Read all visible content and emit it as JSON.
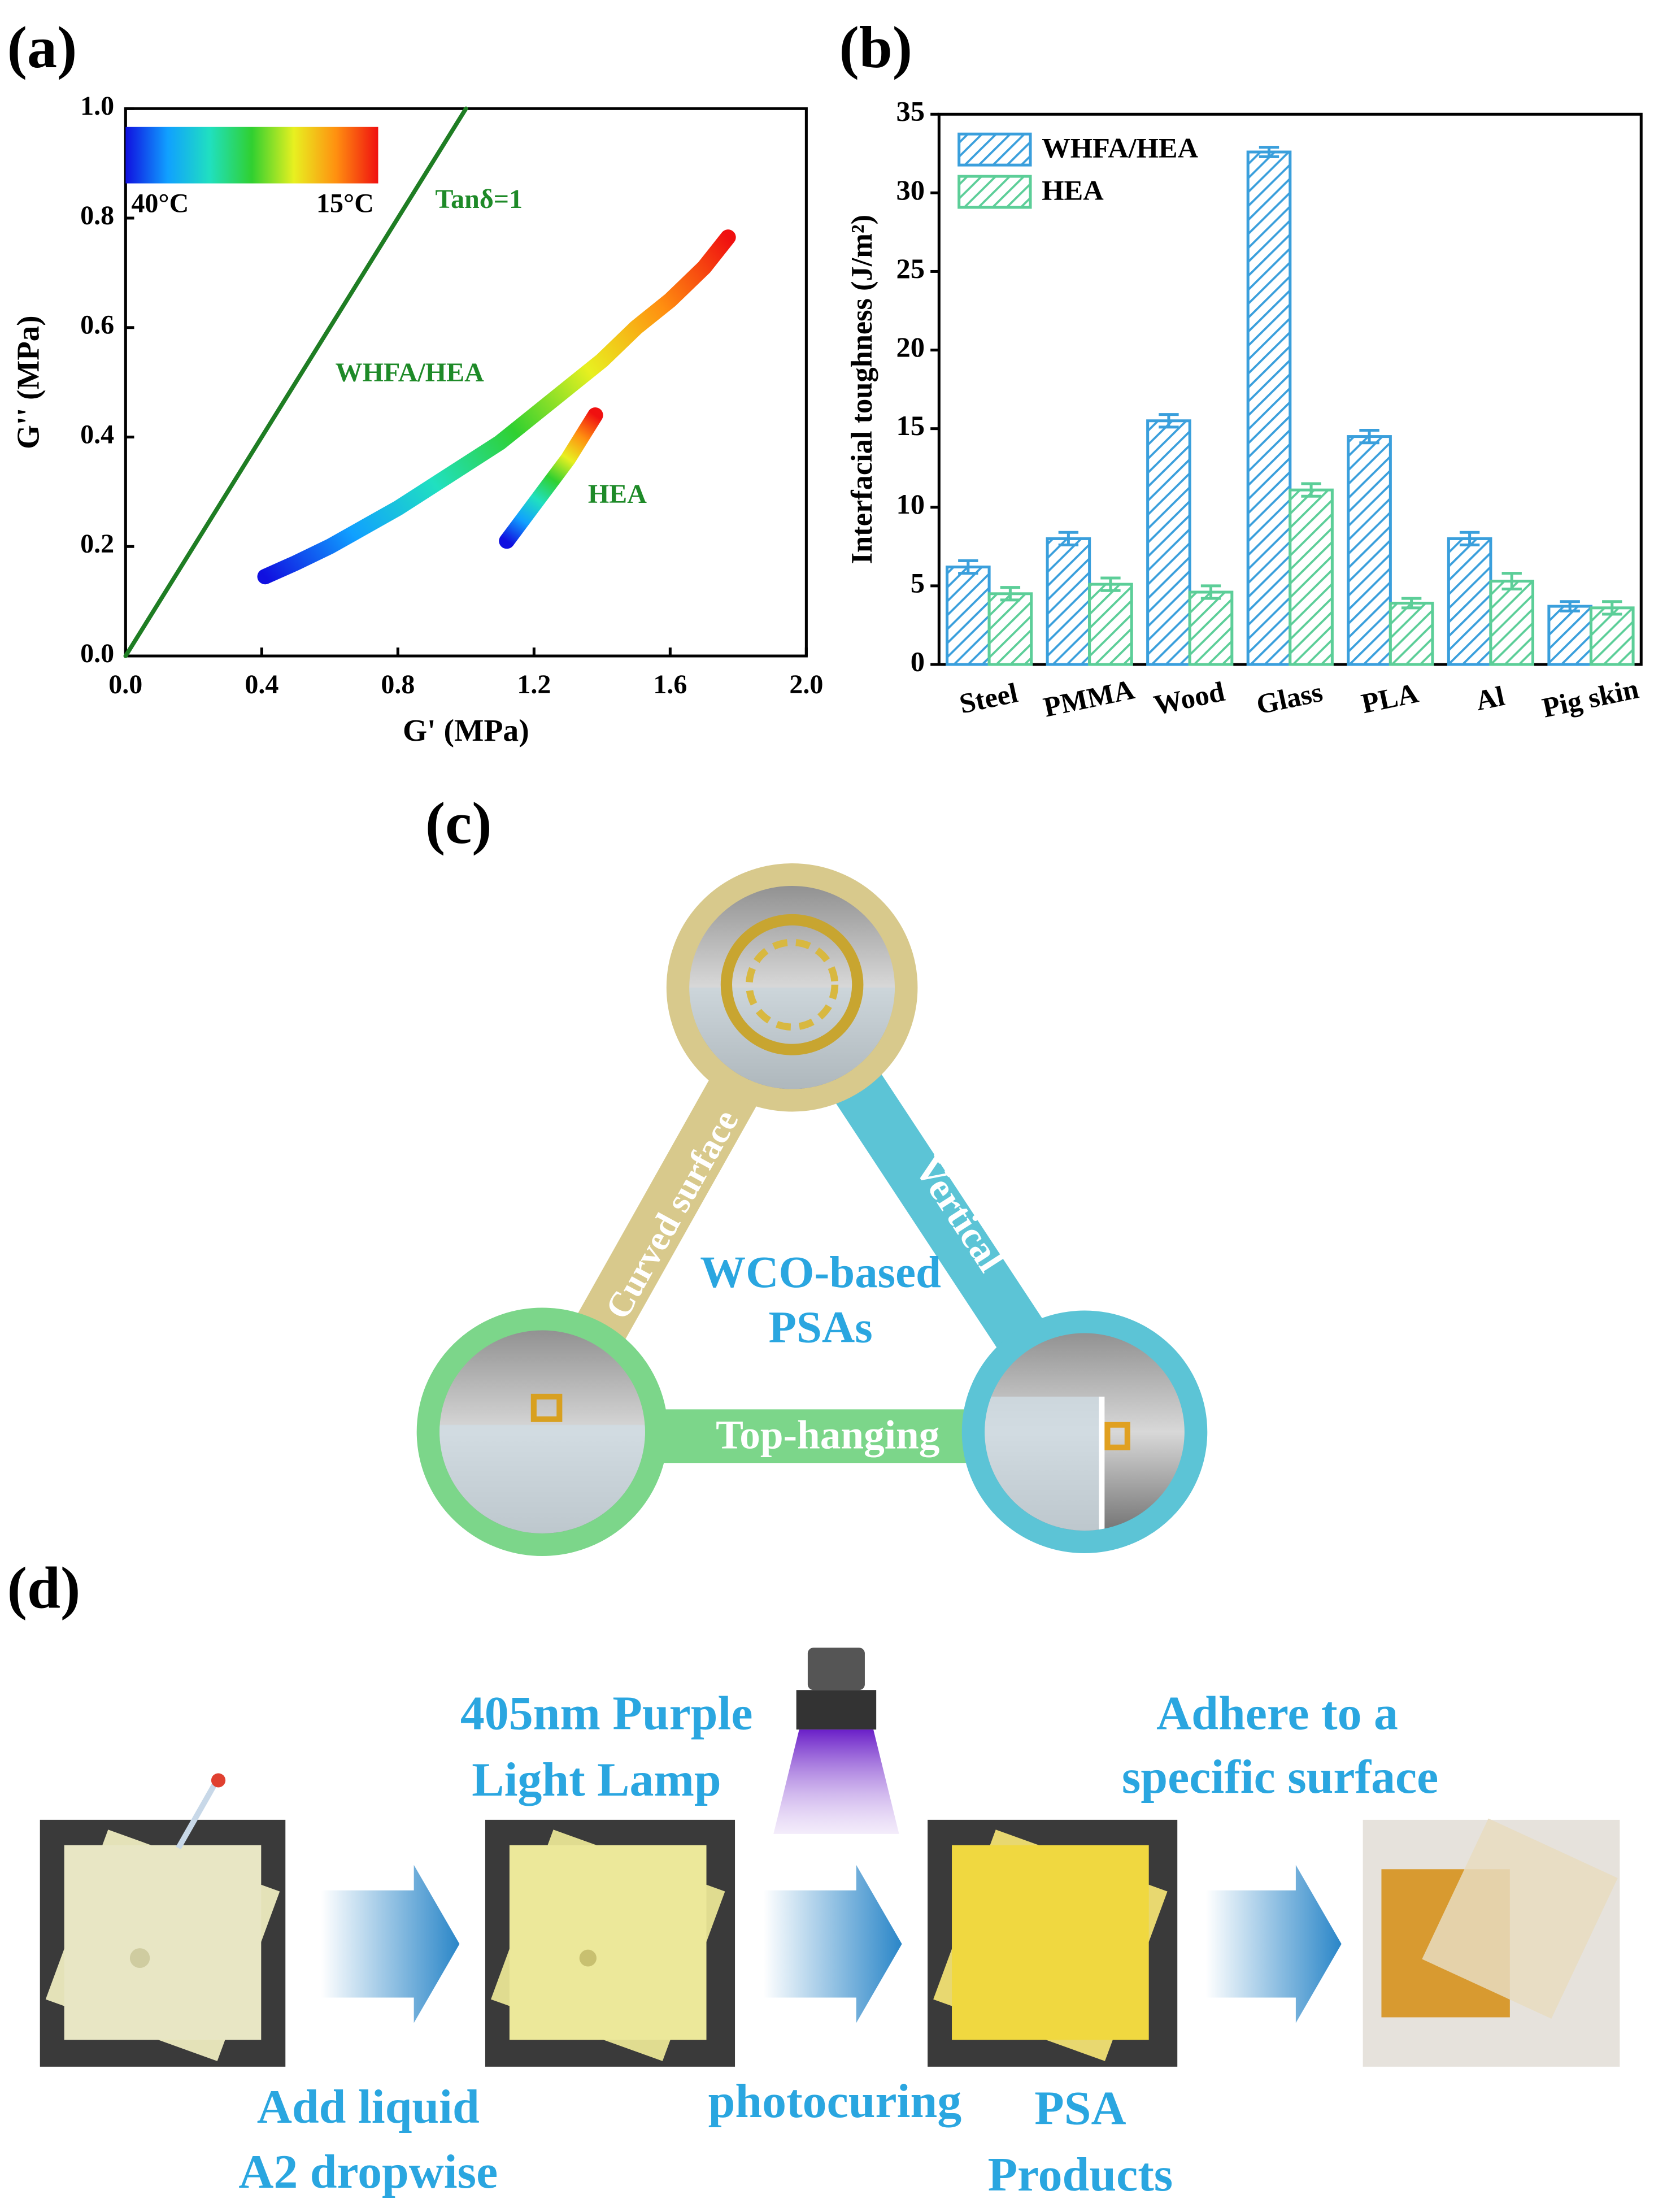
{
  "chart_data": [
    {
      "type": "scatter",
      "label": "(a)",
      "xlabel": "G' (MPa)",
      "ylabel": "G'' (MPa)",
      "xlim": [
        0,
        2
      ],
      "ylim": [
        0,
        1
      ],
      "xticks": [
        {
          "value": 0,
          "label": "0.0"
        },
        0.4,
        0.8,
        1.2,
        1.6,
        {
          "value": 2,
          "label": "2.0"
        }
      ],
      "yticks": [
        {
          "value": 0,
          "label": "0.0"
        },
        0.2,
        0.4,
        0.6,
        0.8,
        {
          "value": 1,
          "label": "1.0"
        }
      ],
      "colormap": [
        "#1010e0",
        "#10a0ff",
        "#20e0c0",
        "#30d030",
        "#e8f020",
        "#ff9010",
        "#f01010"
      ],
      "colorbar_labels": [
        "40°C",
        "15°C"
      ],
      "series": [
        {
          "name": "Tanδ=1",
          "color": "#1e7d23",
          "x": [
            0,
            1
          ],
          "values": [
            0,
            1
          ]
        },
        {
          "name": "WHFA/HEA",
          "x": [
            0.41,
            0.5,
            0.6,
            0.7,
            0.8,
            0.9,
            1.0,
            1.1,
            1.2,
            1.3,
            1.4,
            1.5,
            1.6,
            1.7,
            1.77
          ],
          "values": [
            0.145,
            0.17,
            0.2,
            0.235,
            0.27,
            0.31,
            0.35,
            0.39,
            0.44,
            0.49,
            0.54,
            0.6,
            0.65,
            0.71,
            0.765
          ]
        },
        {
          "name": "HEA",
          "x": [
            1.12,
            1.18,
            1.24,
            1.3,
            1.35,
            1.38
          ],
          "values": [
            0.21,
            0.26,
            0.31,
            0.36,
            0.41,
            0.44
          ]
        }
      ]
    },
    {
      "type": "bar",
      "label": "(b)",
      "ylabel": "Interfacial toughness (J/m²)",
      "categories": [
        "Steel",
        "PMMA",
        "Wood",
        "Glass",
        "PLA",
        "Al",
        "Pig skin"
      ],
      "ylim": [
        0,
        35
      ],
      "yticks": [
        0,
        5,
        10,
        15,
        20,
        25,
        30,
        35
      ],
      "legend": "upper left",
      "series": [
        {
          "name": "WHFA/HEA",
          "color": "#3a9fdc",
          "values": [
            6.2,
            8.0,
            15.5,
            32.6,
            14.5,
            8.0,
            3.7
          ],
          "errors": [
            0.4,
            0.4,
            0.4,
            0.3,
            0.4,
            0.4,
            0.3
          ]
        },
        {
          "name": "HEA",
          "color": "#5cce98",
          "values": [
            4.5,
            5.1,
            4.6,
            11.1,
            3.9,
            5.3,
            3.6
          ],
          "errors": [
            0.4,
            0.4,
            0.4,
            0.4,
            0.3,
            0.5,
            0.4
          ]
        }
      ]
    }
  ],
  "panel_c": {
    "label": "(c)",
    "center": [
      "WCO-based",
      "PSAs"
    ],
    "edges": [
      "Curved surface",
      "Vertical",
      "Top-hanging"
    ]
  },
  "panel_d": {
    "label": "(d)",
    "lamp": [
      "405nm Purple",
      "Light Lamp"
    ],
    "goal": [
      "Adhere to a",
      "specific surface"
    ],
    "steps": [
      {
        "lines": [
          "Add liquid",
          "A2 dropwise"
        ]
      },
      {
        "lines": [
          "photocuring"
        ]
      },
      {
        "lines": [
          "PSA",
          "Products"
        ]
      }
    ]
  }
}
